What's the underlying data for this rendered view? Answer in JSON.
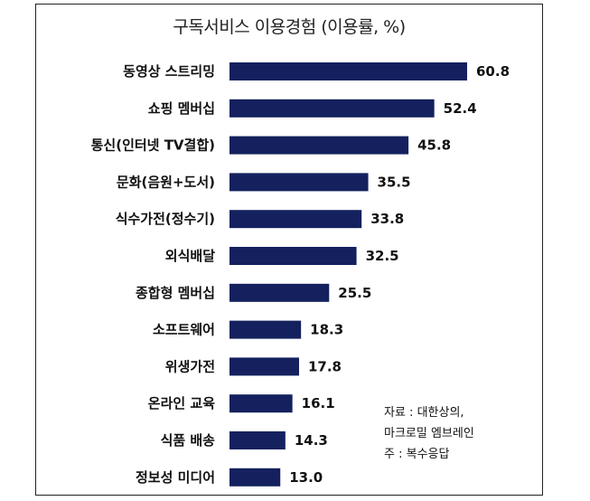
{
  "chart_data": {
    "type": "bar",
    "orientation": "horizontal",
    "title": "구독서비스 이용경험 (이용률, %)",
    "categories": [
      "동영상 스트리밍",
      "쇼핑 멤버십",
      "통신(인터넷 TV결합)",
      "문화(음원+도서)",
      "식수가전(정수기)",
      "외식배달",
      "종합형 멤버십",
      "소프트웨어",
      "위생가전",
      "온라인 교육",
      "식품 배송",
      "정보성 미디어"
    ],
    "values": [
      60.8,
      52.4,
      45.8,
      35.5,
      33.8,
      32.5,
      25.5,
      18.3,
      17.8,
      16.1,
      14.3,
      13.0
    ],
    "value_labels": [
      "60.8",
      "52.4",
      "45.8",
      "35.5",
      "33.8",
      "32.5",
      "25.5",
      "18.3",
      "17.8",
      "16.1",
      "14.3",
      "13.0"
    ],
    "xlim": [
      0,
      60.8
    ],
    "bar_color": "#14215e",
    "grid": false,
    "legend": "none"
  },
  "source_lines": [
    "자료 : 대한상의,",
    "마크로밀 엠브레인",
    "주 : 복수응답"
  ]
}
